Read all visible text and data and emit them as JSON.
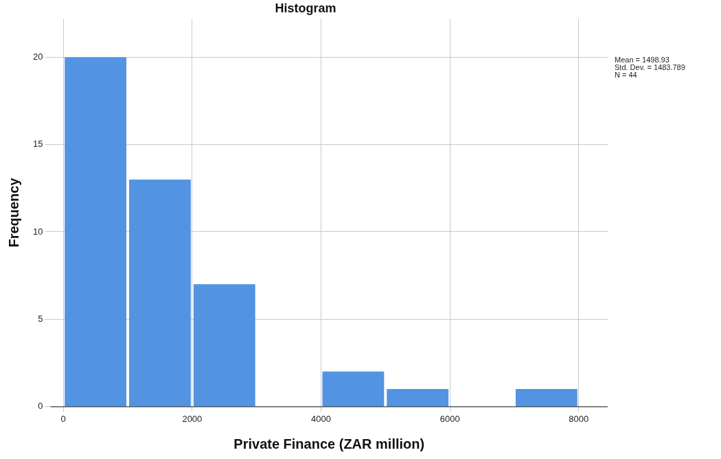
{
  "chart_data": {
    "type": "histogram",
    "title": "Histogram",
    "xlabel": "Private Finance (ZAR million)",
    "ylabel": "Frequency",
    "bins": [
      0,
      1000,
      2000,
      3000,
      4000,
      5000,
      6000,
      7000,
      8000
    ],
    "values": [
      20,
      13,
      7,
      0,
      2,
      1,
      0,
      1
    ],
    "color": "#5294e2",
    "xlim": [
      -200,
      8450
    ],
    "xticks": [
      0,
      2000,
      4000,
      6000,
      8000
    ],
    "ylim": [
      0,
      22.2
    ],
    "yticks": [
      0,
      5,
      10,
      15,
      20
    ],
    "grid": true,
    "annotations": [
      "Mean = 1498.93",
      "Std. Dev. = 1483.789",
      "N = 44"
    ]
  }
}
